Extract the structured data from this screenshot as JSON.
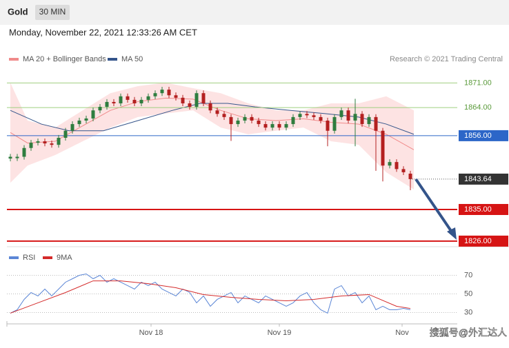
{
  "chart_data": {
    "type": "candlestick",
    "title": "Gold",
    "timeframe": "30 MIN",
    "subtitle": "Monday, November 22, 2021 12:33:26 AM CET",
    "source": "Research © 2021 Trading Central",
    "watermark": "搜狐号@外汇达人",
    "ylim": [
      1825,
      1875
    ],
    "xlim": [
      -0.5,
      64.8
    ],
    "xticks": [
      {
        "value": 20.4,
        "label": "Nov 18"
      },
      {
        "value": 39,
        "label": "Nov 19"
      },
      {
        "value": 56.8,
        "label": "Nov"
      }
    ],
    "up_color": "#2f7d3f",
    "down_color": "#b42020",
    "open": [
      1849.5,
      1849.6,
      1850,
      1852.5,
      1854,
      1854.4,
      1853.8,
      1853.4,
      1855.4,
      1857.4,
      1859.3,
      1860.3,
      1860.9,
      1863.2,
      1864.2,
      1865.6,
      1865.2,
      1867.2,
      1866.2,
      1865.2,
      1866.2,
      1867.2,
      1868.1,
      1869.1,
      1867.5,
      1866.8,
      1865.2,
      1864.2,
      1868.1,
      1865.2,
      1863.2,
      1862.2,
      1861.3,
      1859.3,
      1860.3,
      1861.3,
      1860.3,
      1859.3,
      1858.3,
      1859.3,
      1858.3,
      1859.3,
      1861.3,
      1862.2,
      1861.8,
      1861.3,
      1860.3,
      1857.4,
      1861.3,
      1863.2,
      1860.3,
      1862.2,
      1859.3,
      1861.3,
      1857.4,
      1847.5,
      1848.5,
      1846.5,
      1845.2
    ],
    "high": [
      1850.8,
      1850.8,
      1853.3,
      1854.8,
      1855.2,
      1855.2,
      1854.6,
      1856.2,
      1858.2,
      1860.1,
      1861.1,
      1861.7,
      1864,
      1865,
      1866.4,
      1866.4,
      1868,
      1868,
      1867,
      1867,
      1868,
      1868.9,
      1869.9,
      1869.9,
      1868.3,
      1867.6,
      1866,
      1868.9,
      1868.9,
      1866,
      1864,
      1863,
      1862.1,
      1861.1,
      1862.1,
      1862.1,
      1861.1,
      1860.1,
      1860.1,
      1860.1,
      1860.1,
      1862.1,
      1863,
      1863,
      1862.6,
      1862.1,
      1861.1,
      1862.1,
      1864,
      1864,
      1866.5,
      1863,
      1862.1,
      1862.1,
      1858.2,
      1849.3,
      1849.3,
      1847.3,
      1846
    ],
    "low": [
      1848.7,
      1848.8,
      1849.2,
      1851.7,
      1853.2,
      1853,
      1852.6,
      1852.6,
      1854.6,
      1856.6,
      1858.5,
      1859.5,
      1860.1,
      1862.4,
      1863.4,
      1864.4,
      1864.4,
      1865.4,
      1864.4,
      1864.4,
      1865.4,
      1866.4,
      1867.3,
      1866.7,
      1866,
      1864.4,
      1863.4,
      1863.4,
      1864.4,
      1862.4,
      1861.4,
      1860.5,
      1854.5,
      1858.5,
      1859.5,
      1859.5,
      1858.5,
      1857.5,
      1857.5,
      1857.5,
      1857.5,
      1858.5,
      1860.5,
      1861,
      1860.5,
      1859.5,
      1853,
      1856.6,
      1860.5,
      1859.5,
      1853,
      1858.5,
      1858.5,
      1846,
      1843,
      1846.7,
      1845.7,
      1844.8,
      1840.5
    ],
    "close": [
      1850,
      1850,
      1852.5,
      1854,
      1854.4,
      1853.8,
      1853.4,
      1855.4,
      1857.4,
      1859.3,
      1860.3,
      1860.9,
      1863.2,
      1864.2,
      1865.6,
      1865.2,
      1867.2,
      1866.2,
      1865.2,
      1866.2,
      1867.2,
      1868.1,
      1869.1,
      1867.5,
      1866.8,
      1865.2,
      1864.2,
      1868.1,
      1865.2,
      1863.2,
      1862.2,
      1861.3,
      1859.3,
      1860.3,
      1861.3,
      1860.3,
      1859.3,
      1858.3,
      1859.3,
      1858.3,
      1859.3,
      1861.3,
      1862.2,
      1861.8,
      1861.3,
      1860.3,
      1857.4,
      1861.3,
      1863.2,
      1860.3,
      1862.2,
      1859.3,
      1861.3,
      1857.4,
      1847.5,
      1848.5,
      1846.5,
      1845.6,
      1843.64
    ],
    "bollinger": {
      "name": "MA 20 + Bollinger Bands",
      "color": "#f08a8a",
      "fill": "#fde3e3",
      "x": [
        0,
        2.5,
        6.5,
        10.5,
        14.5,
        18.5,
        22.5,
        26.5,
        30.5,
        34.5,
        38.5,
        42.5,
        46.5,
        50.5,
        54.5,
        58.5
      ],
      "upper": [
        1871.1,
        1860.3,
        1858.3,
        1863.2,
        1868.1,
        1870.1,
        1871.1,
        1869.5,
        1868.1,
        1865.2,
        1863.2,
        1863.2,
        1865.2,
        1865.2,
        1867.2,
        1863.2
      ],
      "middle": [
        1856.9,
        1853.9,
        1854.4,
        1858.8,
        1863.2,
        1865.7,
        1866.7,
        1866.4,
        1863.2,
        1860.8,
        1860.3,
        1860.8,
        1859.8,
        1859.3,
        1856.4,
        1852.0
      ],
      "lower": [
        1842.6,
        1847.5,
        1850.5,
        1854.4,
        1858.3,
        1861.3,
        1862.3,
        1863.2,
        1858.3,
        1856.4,
        1857.4,
        1858.3,
        1854.4,
        1853.4,
        1845.6,
        1840.7
      ]
    },
    "ma50": {
      "name": "MA 50",
      "color": "#34548a",
      "x": [
        0,
        4.5,
        8.5,
        13.5,
        18.5,
        23.5,
        27.5,
        31.5,
        35.5,
        40.5,
        45.5,
        50.5,
        54.5,
        58.5
      ],
      "values": [
        1863.2,
        1859.3,
        1857.4,
        1857.4,
        1860.3,
        1863.2,
        1865.2,
        1865.2,
        1864.2,
        1863.2,
        1862.3,
        1861.3,
        1859.3,
        1856.4
      ]
    },
    "levels": [
      {
        "value": 1871,
        "label": "1871.00",
        "color": "#9fcf7f",
        "boxed": false
      },
      {
        "value": 1864,
        "label": "1864.00",
        "color": "#9fcf7f",
        "boxed": false
      },
      {
        "value": 1856,
        "label": "1856.00",
        "color": "#2c66c8",
        "boxed": true
      },
      {
        "value": 1835,
        "label": "1835.00",
        "color": "#d61414",
        "boxed": true
      },
      {
        "value": 1826,
        "label": "1826.00",
        "color": "#d61414",
        "boxed": true
      }
    ],
    "last_price": 1843.64,
    "rsi": {
      "ylim": [
        20,
        80
      ],
      "yticks": [
        70,
        50,
        30
      ],
      "series": [
        {
          "name": "RSI",
          "color": "#5b86d6",
          "values": [
            29.3,
            33,
            44.1,
            51.5,
            47.8,
            55.2,
            47.8,
            55.2,
            62.6,
            66.3,
            70,
            71.5,
            66.3,
            70,
            62.6,
            66.3,
            62.6,
            58.9,
            55.2,
            62.6,
            58.9,
            62.6,
            55.2,
            51.5,
            47.8,
            55.2,
            51.5,
            40.4,
            47.8,
            36.7,
            44.1,
            47.8,
            51.5,
            40.4,
            47.8,
            44.1,
            40.4,
            47.8,
            44.1,
            40.4,
            36.7,
            40.4,
            47.8,
            51.5,
            40.4,
            33,
            29.3,
            55.2,
            58.9,
            47.8,
            51.5,
            40.4,
            47.8,
            33,
            36.7,
            33,
            33,
            34.4,
            33
          ]
        },
        {
          "name": "9MA",
          "color": "#d42a2a",
          "x": [
            0,
            4,
            8,
            12,
            16,
            20,
            24,
            28,
            32,
            36,
            40,
            44,
            48,
            52,
            56,
            58
          ],
          "values": [
            29.3,
            40.4,
            51.5,
            64,
            64,
            61,
            56.7,
            49.3,
            46.3,
            44.1,
            42.6,
            44.1,
            47.8,
            49.3,
            36.7,
            34.4
          ]
        }
      ]
    }
  }
}
